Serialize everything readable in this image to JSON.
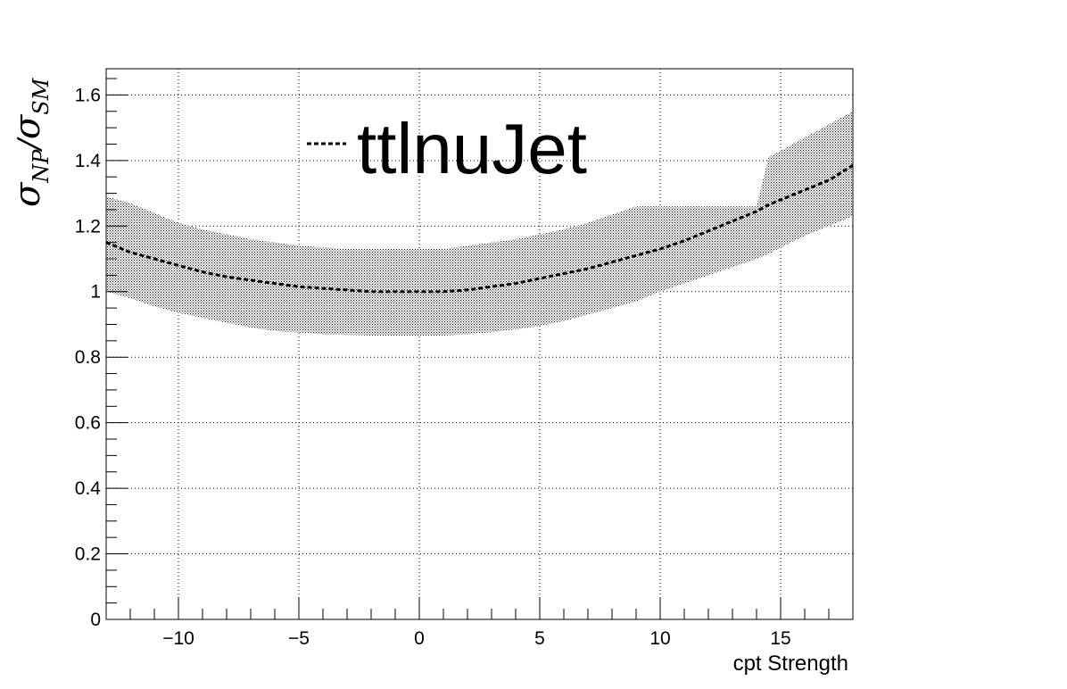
{
  "chart_data": {
    "type": "line",
    "title": "",
    "xlabel": "cpt Strength",
    "ylabel": {
      "base": "σ",
      "sub1": "NP",
      "slash": "/",
      "base2": "σ",
      "sub2": "SM"
    },
    "xlim": [
      -13,
      18
    ],
    "ylim": [
      0,
      1.68
    ],
    "x_ticks": [
      -10,
      -5,
      0,
      5,
      10,
      15
    ],
    "x_tick_labels": [
      "−10",
      "−5",
      "0",
      "5",
      "10",
      "15"
    ],
    "y_ticks": [
      0,
      0.2,
      0.4,
      0.6,
      0.8,
      1,
      1.2,
      1.4,
      1.6
    ],
    "y_tick_labels": [
      "0",
      "0.2",
      "0.4",
      "0.6",
      "0.8",
      "1",
      "1.2",
      "1.4",
      "1.6"
    ],
    "grid": true,
    "legend": {
      "placement": "top-center",
      "entries": [
        {
          "label": "ttlnuJet",
          "style": "dashed"
        }
      ]
    },
    "series": [
      {
        "name": "ttlnuJet",
        "style": "dashed",
        "x": [
          -13,
          -12,
          -11,
          -10,
          -9,
          -8,
          -7,
          -6,
          -5,
          -4,
          -3,
          -2,
          -1,
          0,
          1,
          2,
          3,
          4,
          5,
          6,
          7,
          8,
          9,
          10,
          11,
          12,
          13,
          14,
          14.5,
          15,
          16,
          17,
          18
        ],
        "y": [
          1.15,
          1.12,
          1.1,
          1.08,
          1.06,
          1.045,
          1.035,
          1.025,
          1.015,
          1.01,
          1.005,
          1.0,
          1.0,
          1.0,
          1.0,
          1.005,
          1.015,
          1.025,
          1.04,
          1.055,
          1.07,
          1.09,
          1.11,
          1.13,
          1.155,
          1.185,
          1.215,
          1.245,
          1.265,
          1.28,
          1.31,
          1.34,
          1.385
        ],
        "band_upper": [
          1.29,
          1.27,
          1.24,
          1.21,
          1.19,
          1.175,
          1.16,
          1.15,
          1.14,
          1.135,
          1.13,
          1.13,
          1.13,
          1.13,
          1.13,
          1.14,
          1.15,
          1.16,
          1.175,
          1.19,
          1.21,
          1.235,
          1.26,
          1.26,
          1.26,
          1.26,
          1.26,
          1.26,
          1.41,
          1.43,
          1.47,
          1.51,
          1.55
        ],
        "band_lower": [
          1.0,
          0.98,
          0.955,
          0.935,
          0.92,
          0.905,
          0.89,
          0.88,
          0.875,
          0.87,
          0.868,
          0.866,
          0.866,
          0.866,
          0.866,
          0.87,
          0.876,
          0.885,
          0.895,
          0.91,
          0.93,
          0.95,
          0.97,
          1.0,
          1.025,
          1.05,
          1.075,
          1.1,
          1.115,
          1.135,
          1.17,
          1.2,
          1.23
        ]
      }
    ]
  }
}
